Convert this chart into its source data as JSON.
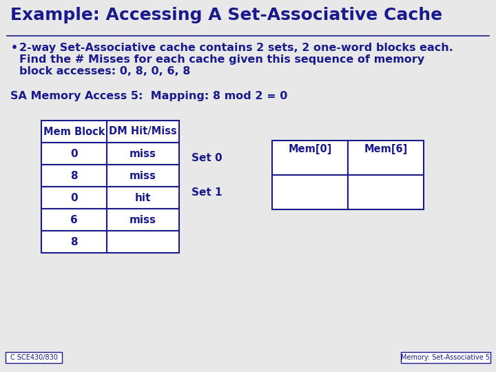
{
  "title": "Example: Accessing A Set-Associative Cache",
  "title_color": "#1a1a8c",
  "title_fontsize": 18,
  "bullet_text_line1": "2-way Set-Associative cache contains 2 sets, 2 one-word blocks each.",
  "bullet_text_line2": "Find the # Misses for each cache given this sequence of memory",
  "bullet_text_line3": "block accesses: 0, 8, 0, 6, 8",
  "bullet_color": "#1a1a8c",
  "bullet_fontsize": 11.5,
  "mapping_text": "SA Memory Access 5:  Mapping: 8 mod 2 = 0",
  "mapping_color": "#1a1a8c",
  "mapping_fontsize": 11.5,
  "table_headers": [
    "Mem Block",
    "DM Hit/Miss"
  ],
  "table_rows": [
    [
      "0",
      "miss"
    ],
    [
      "8",
      "miss"
    ],
    [
      "0",
      "hit"
    ],
    [
      "6",
      "miss"
    ],
    [
      "8",
      ""
    ]
  ],
  "last_row_highlight": true,
  "table_color": "#1a1a8c",
  "set_labels": [
    "Set 0",
    "Set 1"
  ],
  "cache_headers": [
    "Mem[0]",
    "Mem[6]"
  ],
  "bg_color": "#e8e8e8",
  "footer_left": "C SCE430/830",
  "footer_right": "Memory: Set-Associative 5",
  "footer_color": "#1a1a8c",
  "footer_fontsize": 7
}
